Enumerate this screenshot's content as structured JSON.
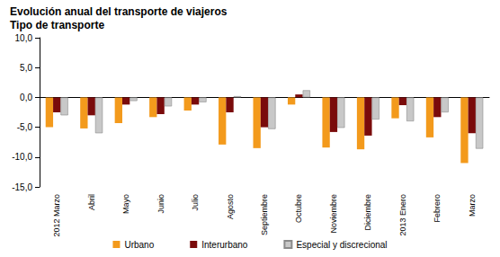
{
  "chart_data": {
    "type": "bar",
    "title": "Evolución anual del transporte de viajeros",
    "subtitle": "Tipo de transporte",
    "categories": [
      "2012 Marzo",
      "Abril",
      "Mayo",
      "Junio",
      "Julio",
      "Agosto",
      "Septiembre",
      "Octubre",
      "Noviembre",
      "Diciembre",
      "2013 Enero",
      "Febrero",
      "Marzo"
    ],
    "series": [
      {
        "name": "Urbano",
        "color": "#f39a1c",
        "values": [
          -5.0,
          -5.2,
          -4.3,
          -3.3,
          -2.2,
          -7.9,
          -8.5,
          -1.2,
          -8.4,
          -8.7,
          -3.5,
          -6.7,
          -11.0
        ]
      },
      {
        "name": "Interurbano",
        "color": "#7a0b0b",
        "values": [
          -2.5,
          -3.0,
          -1.2,
          -2.8,
          -1.2,
          -2.5,
          -5.0,
          0.5,
          -5.8,
          -6.4,
          -1.3,
          -3.3,
          -6.0
        ]
      },
      {
        "name": "Especial y discrecional",
        "color": "#c8c8c8",
        "values": [
          -3.0,
          -6.0,
          -0.6,
          -1.5,
          -0.8,
          0.2,
          -5.3,
          1.2,
          -5.1,
          -3.7,
          -4.0,
          -2.5,
          -8.6
        ]
      }
    ],
    "ylim": [
      -15,
      10
    ],
    "yticks": [
      {
        "value": -15,
        "label": "-15,0"
      },
      {
        "value": -10,
        "label": "-10,0"
      },
      {
        "value": -5,
        "label": "-5,0"
      },
      {
        "value": 0,
        "label": "0,0"
      },
      {
        "value": 5,
        "label": "5,0"
      },
      {
        "value": 10,
        "label": "10,0"
      }
    ],
    "grid": false,
    "legend": "bottom"
  }
}
